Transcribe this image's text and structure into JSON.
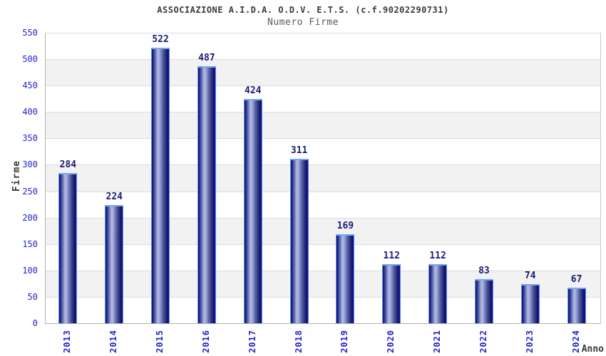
{
  "header": {
    "title": "ASSOCIAZIONE A.I.D.A. O.D.V. E.T.S. (c.f.90202290731)",
    "subtitle": "Numero Firme"
  },
  "chart_data": {
    "type": "bar",
    "title": "ASSOCIAZIONE A.I.D.A. O.D.V. E.T.S. (c.f.90202290731)",
    "subtitle": "Numero Firme",
    "categories": [
      "2013",
      "2014",
      "2015",
      "2016",
      "2017",
      "2018",
      "2019",
      "2020",
      "2021",
      "2022",
      "2023",
      "2024"
    ],
    "values": [
      284,
      224,
      522,
      487,
      424,
      311,
      169,
      112,
      112,
      83,
      74,
      67
    ],
    "xlabel": "Anno",
    "ylabel": "Firme",
    "ylim": [
      0,
      550
    ],
    "yticks": [
      0,
      50,
      100,
      150,
      200,
      250,
      300,
      350,
      400,
      450,
      500,
      550
    ],
    "grid": true,
    "legend": "none",
    "colors": {
      "bar_dark": "#0e0e72",
      "bar_light": "#b7bfe4",
      "bar_outline": "#5c96ea",
      "tick_label": "#2323cc",
      "value_label": "#1a1a78",
      "band_alt": "#f2f2f2",
      "gridline": "#dcdcdc",
      "axis_line": "#b0b0b0",
      "title_text": "#3a3a3a"
    }
  }
}
